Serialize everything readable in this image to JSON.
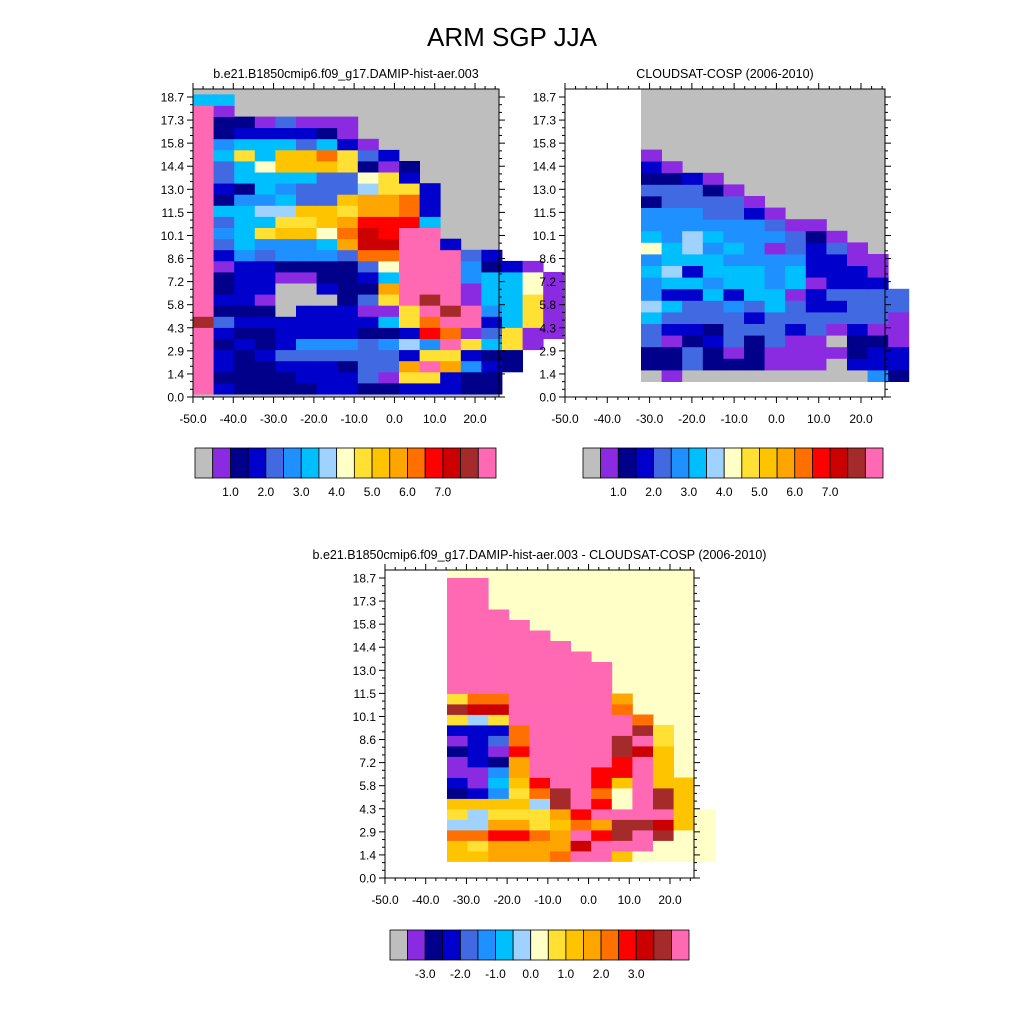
{
  "title": "ARM SGP JJA",
  "palette": [
    "#bebebe",
    "#8a2be2",
    "#00008b",
    "#0000cd",
    "#4169e1",
    "#1e90ff",
    "#00bfff",
    "#a0d2ff",
    "#ffffc8",
    "#ffe033",
    "#ffc400",
    "#ffa500",
    "#ff7000",
    "#ff0000",
    "#cc0000",
    "#a52a2a",
    "#ff69b4"
  ],
  "chart_data": [
    {
      "type": "heatmap",
      "title": "b.e21.B1850cmip6.f09_g17.DAMIP-hist-aer.003",
      "x_tick_labels": [
        "-50.0",
        "-40.0",
        "-30.0",
        "-20.0",
        "-10.0",
        "0.0",
        "10.0",
        "20.0"
      ],
      "y_tick_labels": [
        "0.0",
        "1.4",
        "2.9",
        "4.3",
        "5.8",
        "7.2",
        "8.6",
        "10.1",
        "11.5",
        "13.0",
        "14.4",
        "15.8",
        "17.3",
        "18.7"
      ],
      "colorbar_labels": [
        "1.0",
        "2.0",
        "3.0",
        "4.0",
        "5.0",
        "6.0",
        "7.0"
      ],
      "background": "#bebebe",
      "rows": [
        [
          "16",
          "3",
          "2",
          "2",
          "2",
          "2",
          "3",
          "3",
          "2",
          "2",
          "3",
          "3",
          "3",
          "2",
          "2"
        ],
        [
          "16",
          "2",
          "2",
          "2",
          "2",
          "3",
          "3",
          "3",
          "4",
          "1",
          "9",
          "9",
          "3",
          "2",
          "2"
        ],
        [
          "16",
          "3",
          "2",
          "2",
          "3",
          "3",
          "3",
          "2",
          "4",
          "4",
          "11",
          "16",
          "11",
          "5",
          "3",
          "2"
        ],
        [
          "16",
          "3",
          "2",
          "3",
          "4",
          "4",
          "4",
          "4",
          "4",
          "4",
          "3",
          "9",
          "9",
          "3",
          "2",
          "2"
        ],
        [
          "16",
          "2",
          "3",
          "2",
          "3",
          "5",
          "5",
          "5",
          "4",
          "5",
          "7",
          "5",
          "16",
          "9",
          "6",
          "9",
          "1"
        ],
        [
          "16",
          "3",
          "2",
          "2",
          "3",
          "3",
          "3",
          "3",
          "2",
          "2",
          "3",
          "13",
          "12",
          "1",
          "4",
          "9",
          "1",
          "1"
        ],
        [
          "15",
          "4",
          "3",
          "3",
          "3",
          "3",
          "3",
          "3",
          "3",
          "6",
          "9",
          "12",
          "16",
          "16",
          "3",
          "6",
          "9",
          "1"
        ],
        [
          "16",
          "2",
          "2",
          "2",
          "0",
          "3",
          "3",
          "3",
          "1",
          "1",
          "9",
          "16",
          "15",
          "16",
          "5",
          "6",
          "9",
          "1"
        ],
        [
          "16",
          "3",
          "3",
          "1",
          "0",
          "0",
          "0",
          "2",
          "4",
          "9",
          "16",
          "15",
          "16",
          "1",
          "6",
          "6",
          "9",
          "1"
        ],
        [
          "16",
          "2",
          "3",
          "3",
          "0",
          "0",
          "3",
          "2",
          "2",
          "11",
          "16",
          "16",
          "16",
          "1",
          "6",
          "6",
          "8",
          "1"
        ],
        [
          "16",
          "2",
          "3",
          "3",
          "1",
          "1",
          "2",
          "2",
          "3",
          "6",
          "16",
          "16",
          "16",
          "5",
          "6",
          "6",
          "8",
          "1"
        ],
        [
          "16",
          "1",
          "3",
          "3",
          "2",
          "2",
          "2",
          "2",
          "4",
          "8",
          "16",
          "16",
          "16",
          "5",
          "2",
          "3",
          "1"
        ],
        [
          "16",
          "3",
          "5",
          "4",
          "5",
          "5",
          "5",
          "4",
          "12",
          "12",
          "16",
          "16",
          "16",
          "4",
          "3"
        ],
        [
          "16",
          "4",
          "6",
          "5",
          "5",
          "5",
          "6",
          "11",
          "14",
          "14",
          "16",
          "16",
          "3"
        ],
        [
          "16",
          "5",
          "6",
          "9",
          "10",
          "10",
          "8",
          "12",
          "14",
          "13",
          "16",
          "16"
        ],
        [
          "16",
          "4",
          "6",
          "6",
          "9",
          "9",
          "10",
          "11",
          "13",
          "13",
          "13",
          "6"
        ],
        [
          "16",
          "6",
          "6",
          "7",
          "7",
          "10",
          "10",
          "9",
          "11",
          "11",
          "12",
          "3"
        ],
        [
          "16",
          "2",
          "5",
          "5",
          "6",
          "4",
          "4",
          "10",
          "11",
          "11",
          "12",
          "3"
        ],
        [
          "16",
          "3",
          "2",
          "6",
          "5",
          "4",
          "4",
          "4",
          "7",
          "9",
          "9",
          "3"
        ],
        [
          "16",
          "4",
          "6",
          "6",
          "6",
          "6",
          "4",
          "4",
          "8",
          "9",
          "3"
        ],
        [
          "16",
          "4",
          "6",
          "8",
          "10",
          "10",
          "10",
          "9",
          "2",
          "1",
          "2"
        ],
        [
          "16",
          "6",
          "9",
          "6",
          "10",
          "10",
          "12",
          "9",
          "4",
          "3"
        ],
        [
          "16",
          "5",
          "6",
          "6",
          "6",
          "4",
          "6",
          "3",
          "1"
        ],
        [
          "16",
          "2",
          "3",
          "3",
          "3",
          "3",
          "2",
          "1"
        ],
        [
          "16",
          "2",
          "2",
          "1",
          "4",
          "1",
          "1",
          "1"
        ],
        [
          "16",
          "1"
        ],
        [
          "6",
          "6"
        ]
      ]
    },
    {
      "type": "heatmap",
      "title": "CLOUDSAT-COSP (2006-2010)",
      "x_tick_labels": [
        "-50.0",
        "-40.0",
        "-30.0",
        "-20.0",
        "-10.0",
        "0.0",
        "10.0",
        "20.0"
      ],
      "y_tick_labels": [
        "0.0",
        "1.4",
        "2.9",
        "4.3",
        "5.8",
        "7.2",
        "8.6",
        "10.1",
        "11.5",
        "13.0",
        "14.4",
        "15.8",
        "17.3",
        "18.7"
      ],
      "colorbar_labels": [
        "1.0",
        "2.0",
        "3.0",
        "4.0",
        "5.0",
        "6.0",
        "7.0"
      ],
      "background": "#bebebe",
      "rows": [
        [
          "0",
          "1",
          "0",
          "0",
          "0",
          "0",
          "0",
          "0",
          "0",
          "0",
          "0",
          "5",
          "2"
        ],
        [
          "2",
          "2",
          "4",
          "2",
          "2",
          "2",
          "1",
          "1",
          "1",
          "0",
          "3",
          "3",
          "3"
        ],
        [
          "2",
          "2",
          "4",
          "2",
          "1",
          "2",
          "1",
          "1",
          "1",
          "1",
          "2",
          "3",
          "3"
        ],
        [
          "4",
          "1",
          "2",
          "3",
          "4",
          "2",
          "4",
          "1",
          "1",
          "0",
          "2",
          "2",
          "1"
        ],
        [
          "4",
          "3",
          "3",
          "2",
          "4",
          "4",
          "4",
          "3",
          "4",
          "1",
          "3",
          "1",
          "1"
        ],
        [
          "6",
          "4",
          "4",
          "4",
          "4",
          "3",
          "4",
          "4",
          "4",
          "4",
          "4",
          "4",
          "1"
        ],
        [
          "7",
          "6",
          "4",
          "4",
          "5",
          "4",
          "6",
          "4",
          "3",
          "3",
          "4",
          "4",
          "4"
        ],
        [
          "5",
          "3",
          "3",
          "6",
          "3",
          "6",
          "6",
          "1",
          "3",
          "4",
          "4",
          "4",
          "4"
        ],
        [
          "5",
          "6",
          "6",
          "5",
          "6",
          "6",
          "5",
          "6",
          "1",
          "3",
          "3",
          "3"
        ],
        [
          "6",
          "7",
          "3",
          "6",
          "6",
          "6",
          "5",
          "6",
          "3",
          "3",
          "3",
          "1"
        ],
        [
          "5",
          "6",
          "6",
          "6",
          "5",
          "5",
          "5",
          "5",
          "3",
          "3",
          "1",
          "1"
        ],
        [
          "8",
          "6",
          "7",
          "5",
          "6",
          "5",
          "1",
          "4",
          "3",
          "4",
          "1"
        ],
        [
          "6",
          "5",
          "7",
          "6",
          "5",
          "5",
          "5",
          "4",
          "2",
          "1"
        ],
        [
          "5",
          "5",
          "5",
          "5",
          "5",
          "5",
          "4",
          "1",
          "1"
        ],
        [
          "5",
          "5",
          "5",
          "4",
          "4",
          "3",
          "1"
        ],
        [
          "2",
          "4",
          "4",
          "4",
          "4",
          "1"
        ],
        [
          "4",
          "4",
          "4",
          "2",
          "1"
        ],
        [
          "2",
          "2",
          "3",
          "1"
        ],
        [
          "3",
          "1"
        ],
        [
          "1"
        ]
      ]
    },
    {
      "type": "heatmap",
      "title": "b.e21.B1850cmip6.f09_g17.DAMIP-hist-aer.003 - CLOUDSAT-COSP (2006-2010)",
      "x_tick_labels": [
        "-50.0",
        "-40.0",
        "-30.0",
        "-20.0",
        "-10.0",
        "0.0",
        "10.0",
        "20.0"
      ],
      "y_tick_labels": [
        "0.0",
        "1.4",
        "2.9",
        "4.3",
        "5.8",
        "7.2",
        "8.6",
        "10.1",
        "11.5",
        "13.0",
        "14.4",
        "15.8",
        "17.3",
        "18.7"
      ],
      "colorbar_labels": [
        "-3.0",
        "-2.0",
        "-1.0",
        "0.0",
        "1.0",
        "2.0",
        "3.0"
      ],
      "background": "#ffffc8",
      "rows": [
        [
          "10",
          "10",
          "11",
          "11",
          "11",
          "12",
          "16",
          "16",
          "10",
          "8",
          "8",
          "8",
          "8"
        ],
        [
          "10",
          "9",
          "11",
          "11",
          "11",
          "11",
          "14",
          "16",
          "16",
          "16",
          "8",
          "8",
          "8"
        ],
        [
          "12",
          "12",
          "13",
          "13",
          "12",
          "11",
          "16",
          "13",
          "15",
          "16",
          "15",
          "8",
          "8"
        ],
        [
          "7",
          "7",
          "11",
          "11",
          "9",
          "10",
          "12",
          "11",
          "15",
          "15",
          "14",
          "10",
          "8"
        ],
        [
          "9",
          "7",
          "9",
          "9",
          "9",
          "11",
          "13",
          "16",
          "16",
          "16",
          "16",
          "10",
          "8"
        ],
        [
          "10",
          "10",
          "10",
          "10",
          "7",
          "15",
          "16",
          "13",
          "8",
          "16",
          "15",
          "10"
        ],
        [
          "2",
          "3",
          "5",
          "9",
          "12",
          "15",
          "16",
          "12",
          "8",
          "16",
          "15",
          "10"
        ],
        [
          "3",
          "1",
          "6",
          "10",
          "13",
          "16",
          "16",
          "13",
          "10",
          "16",
          "10",
          "10"
        ],
        [
          "1",
          "1",
          "5",
          "11",
          "16",
          "16",
          "16",
          "13",
          "13",
          "16",
          "10"
        ],
        [
          "1",
          "3",
          "2",
          "11",
          "16",
          "16",
          "16",
          "16",
          "13",
          "16",
          "10"
        ],
        [
          "2",
          "3",
          "1",
          "13",
          "16",
          "16",
          "16",
          "16",
          "15",
          "14",
          "10"
        ],
        [
          "1",
          "3",
          "4",
          "12",
          "16",
          "16",
          "16",
          "16",
          "15",
          "16",
          "9"
        ],
        [
          "3",
          "3",
          "3",
          "12",
          "16",
          "16",
          "16",
          "16",
          "16",
          "15",
          "9"
        ],
        [
          "9",
          "7",
          "9",
          "16",
          "16",
          "16",
          "16",
          "16",
          "16",
          "12"
        ],
        [
          "15",
          "14",
          "14",
          "16",
          "16",
          "16",
          "16",
          "16",
          "12"
        ],
        [
          "9",
          "12",
          "12",
          "16",
          "16",
          "16",
          "16",
          "16",
          "11"
        ],
        [
          "16",
          "16",
          "16",
          "16",
          "16",
          "16",
          "16",
          "16"
        ],
        [
          "16",
          "16",
          "16",
          "16",
          "16",
          "16",
          "16",
          "16"
        ],
        [
          "16",
          "16",
          "16",
          "16",
          "16",
          "16",
          "16",
          "16"
        ],
        [
          "16",
          "16",
          "16",
          "16",
          "16",
          "16",
          "16"
        ],
        [
          "16",
          "16",
          "16",
          "16",
          "16",
          "16"
        ],
        [
          "16",
          "16",
          "16",
          "16",
          "16"
        ],
        [
          "16",
          "16",
          "16",
          "16"
        ],
        [
          "16",
          "16",
          "16"
        ],
        [
          "16",
          "16"
        ],
        [
          "16",
          "16"
        ],
        [
          "16",
          "16"
        ]
      ]
    }
  ]
}
